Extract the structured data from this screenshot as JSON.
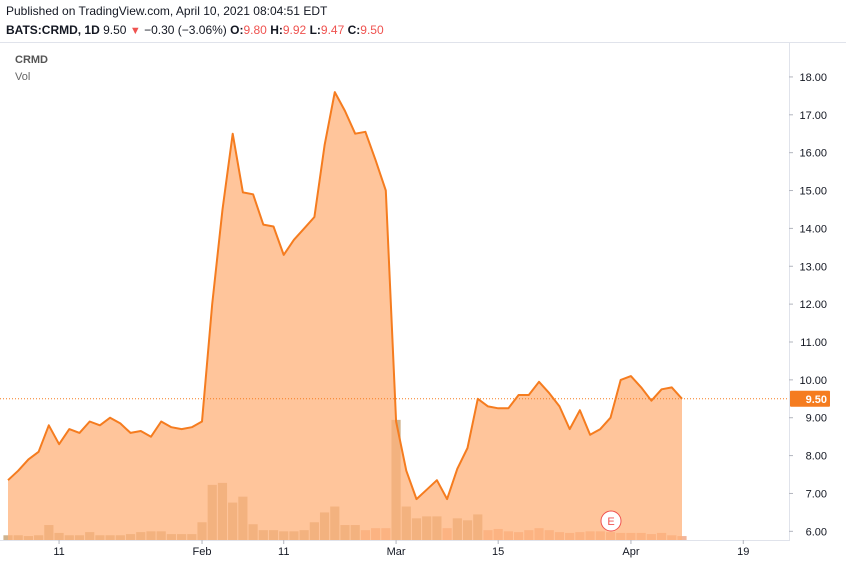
{
  "header": {
    "published": "Published on TradingView.com, April 10, 2021 08:04:51 EDT",
    "ticker": "BATS:CRMD, 1D",
    "last": "9.50",
    "change": "−0.30 (−3.06%)",
    "o_label": "O:",
    "o_value": "9.80",
    "h_label": "H:",
    "h_value": "9.92",
    "l_label": "L:",
    "l_value": "9.47",
    "c_label": "C:",
    "c_value": "9.50"
  },
  "legend": {
    "symbol": "CRMD",
    "volume": "Vol"
  },
  "earnings_marker": "E",
  "colors": {
    "line": "#f57c1f",
    "area": "#ffb27a",
    "volume": "#c8a67a",
    "volume_low": "#f0a98a",
    "last_price_label": "#f57c1f",
    "down": "#ef5350"
  },
  "chart_data": {
    "type": "area",
    "title": "CRMD",
    "ylim": [
      5.85,
      18.5
    ],
    "y_ticks": [
      "18.00",
      "17.00",
      "16.00",
      "15.00",
      "14.00",
      "13.00",
      "12.00",
      "11.00",
      "10.00",
      "9.00",
      "8.00",
      "7.00",
      "6.00"
    ],
    "y_tick_values": [
      18,
      17,
      16,
      15,
      14,
      13,
      12,
      11,
      10,
      9,
      8,
      7,
      6
    ],
    "x_ticks": [
      "11",
      "Feb",
      "11",
      "Mar",
      "15",
      "Apr",
      "19"
    ],
    "x_tick_index": [
      5,
      19,
      27,
      38,
      48,
      61,
      72
    ],
    "last_price": "9.50",
    "total_slots": 82,
    "series": [
      {
        "values": [
          7.35,
          7.6,
          7.9,
          8.1,
          8.8,
          8.3,
          8.7,
          8.6,
          8.9,
          8.8,
          9.0,
          8.85,
          8.6,
          8.65,
          8.5,
          8.9,
          8.75,
          8.7,
          8.75,
          8.9,
          12.0,
          14.5,
          16.5,
          14.95,
          14.9,
          14.1,
          14.05,
          13.3,
          13.7,
          14.0,
          14.3,
          16.2,
          17.6,
          17.1,
          16.5,
          16.55,
          15.8,
          15.0,
          8.9,
          7.6,
          6.85,
          7.1,
          7.35,
          6.85,
          7.65,
          8.2,
          9.5,
          9.3,
          9.25,
          9.25,
          9.6,
          9.6,
          9.95,
          9.65,
          9.3,
          8.7,
          9.2,
          8.55,
          8.7,
          9.0,
          10.0,
          10.1,
          9.8,
          9.45,
          9.75,
          9.8,
          9.5
        ]
      }
    ],
    "volume": {
      "ylim": [
        0,
        3.3
      ],
      "values": [
        0.12,
        0.12,
        0.1,
        0.12,
        0.38,
        0.18,
        0.12,
        0.12,
        0.2,
        0.12,
        0.12,
        0.12,
        0.15,
        0.2,
        0.22,
        0.22,
        0.15,
        0.15,
        0.15,
        0.45,
        1.4,
        1.45,
        0.95,
        1.1,
        0.4,
        0.25,
        0.25,
        0.22,
        0.22,
        0.25,
        0.45,
        0.7,
        0.85,
        0.38,
        0.38,
        0.25,
        0.3,
        0.3,
        3.05,
        0.85,
        0.55,
        0.6,
        0.6,
        0.3,
        0.55,
        0.5,
        0.65,
        0.25,
        0.28,
        0.22,
        0.2,
        0.25,
        0.3,
        0.25,
        0.2,
        0.18,
        0.2,
        0.22,
        0.22,
        0.2,
        0.18,
        0.18,
        0.18,
        0.15,
        0.18,
        0.12,
        0.1
      ],
      "low_color_from_index": 35
    }
  }
}
